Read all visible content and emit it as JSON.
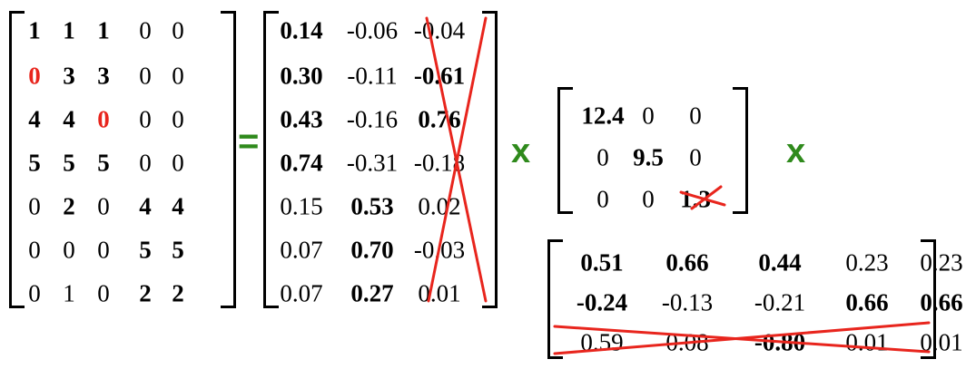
{
  "matrix_a": {
    "rows": [
      [
        {
          "v": "1",
          "b": true
        },
        {
          "v": "1",
          "b": true
        },
        {
          "v": "1",
          "b": true
        },
        {
          "v": "0",
          "b": false
        },
        {
          "v": "0",
          "b": false
        }
      ],
      [
        {
          "v": "0",
          "b": true,
          "red": true
        },
        {
          "v": "3",
          "b": true
        },
        {
          "v": "3",
          "b": true
        },
        {
          "v": "0",
          "b": false
        },
        {
          "v": "0",
          "b": false
        }
      ],
      [
        {
          "v": "4",
          "b": true
        },
        {
          "v": "4",
          "b": true
        },
        {
          "v": "0",
          "b": true,
          "red": true
        },
        {
          "v": "0",
          "b": false
        },
        {
          "v": "0",
          "b": false
        }
      ],
      [
        {
          "v": "5",
          "b": true
        },
        {
          "v": "5",
          "b": true
        },
        {
          "v": "5",
          "b": true
        },
        {
          "v": "0",
          "b": false
        },
        {
          "v": "0",
          "b": false
        }
      ],
      [
        {
          "v": "0",
          "b": false
        },
        {
          "v": "2",
          "b": true
        },
        {
          "v": "0",
          "b": false
        },
        {
          "v": "4",
          "b": true
        },
        {
          "v": "4",
          "b": true
        }
      ],
      [
        {
          "v": "0",
          "b": false
        },
        {
          "v": "0",
          "b": false
        },
        {
          "v": "0",
          "b": false
        },
        {
          "v": "5",
          "b": true
        },
        {
          "v": "5",
          "b": true
        }
      ],
      [
        {
          "v": "0",
          "b": false
        },
        {
          "v": "1",
          "b": false
        },
        {
          "v": "0",
          "b": false
        },
        {
          "v": "2",
          "b": true
        },
        {
          "v": "2",
          "b": true
        }
      ]
    ]
  },
  "equals_sign": "=",
  "matrix_u": {
    "rows": [
      [
        {
          "v": "0.14",
          "b": true
        },
        {
          "v": "-0.06",
          "b": false
        },
        {
          "v": "-0.04",
          "b": false
        }
      ],
      [
        {
          "v": "0.30",
          "b": true
        },
        {
          "v": "-0.11",
          "b": false
        },
        {
          "v": "-0.61",
          "b": true
        }
      ],
      [
        {
          "v": "0.43",
          "b": true
        },
        {
          "v": "-0.16",
          "b": false
        },
        {
          "v": "0.76",
          "b": true
        }
      ],
      [
        {
          "v": "0.74",
          "b": true
        },
        {
          "v": "-0.31",
          "b": false
        },
        {
          "v": "-0.18",
          "b": false
        }
      ],
      [
        {
          "v": "0.15",
          "b": false
        },
        {
          "v": "0.53",
          "b": true
        },
        {
          "v": "0.02",
          "b": false
        }
      ],
      [
        {
          "v": "0.07",
          "b": false
        },
        {
          "v": "0.70",
          "b": true
        },
        {
          "v": "-0.03",
          "b": false
        }
      ],
      [
        {
          "v": "0.07",
          "b": false
        },
        {
          "v": "0.27",
          "b": true
        },
        {
          "v": "0.01",
          "b": false
        }
      ]
    ],
    "crossed_out": "column 3"
  },
  "times_sign_1": "x",
  "matrix_sigma": {
    "rows": [
      [
        {
          "v": "12.4",
          "b": true
        },
        {
          "v": "0",
          "b": false
        },
        {
          "v": "0",
          "b": false
        }
      ],
      [
        {
          "v": "0",
          "b": false
        },
        {
          "v": "9.5",
          "b": true
        },
        {
          "v": "0",
          "b": false
        }
      ],
      [
        {
          "v": "0",
          "b": false
        },
        {
          "v": "0",
          "b": false
        },
        {
          "v": "1.3",
          "b": true
        }
      ]
    ],
    "crossed_out": "entry 1.3"
  },
  "times_sign_2": "x",
  "matrix_vt": {
    "rows": [
      [
        {
          "v": "0.51",
          "b": true
        },
        {
          "v": "0.66",
          "b": true
        },
        {
          "v": "0.44",
          "b": true
        },
        {
          "v": "0.23",
          "b": false
        },
        {
          "v": "0.23",
          "b": false
        }
      ],
      [
        {
          "v": "-0.24",
          "b": true
        },
        {
          "v": "-0.13",
          "b": false
        },
        {
          "v": "-0.21",
          "b": false
        },
        {
          "v": "0.66",
          "b": true
        },
        {
          "v": "0.66",
          "b": true
        }
      ],
      [
        {
          "v": "0.59",
          "b": false
        },
        {
          "v": "0.08",
          "b": false
        },
        {
          "v": "-0.80",
          "b": true
        },
        {
          "v": "0.01",
          "b": false
        },
        {
          "v": "0.01",
          "b": false
        }
      ]
    ],
    "crossed_out": "row 3"
  },
  "colors": {
    "text": "#000000",
    "highlight": "#e8251d",
    "operator": "#2f8a1c",
    "cross": "#e8251d"
  }
}
